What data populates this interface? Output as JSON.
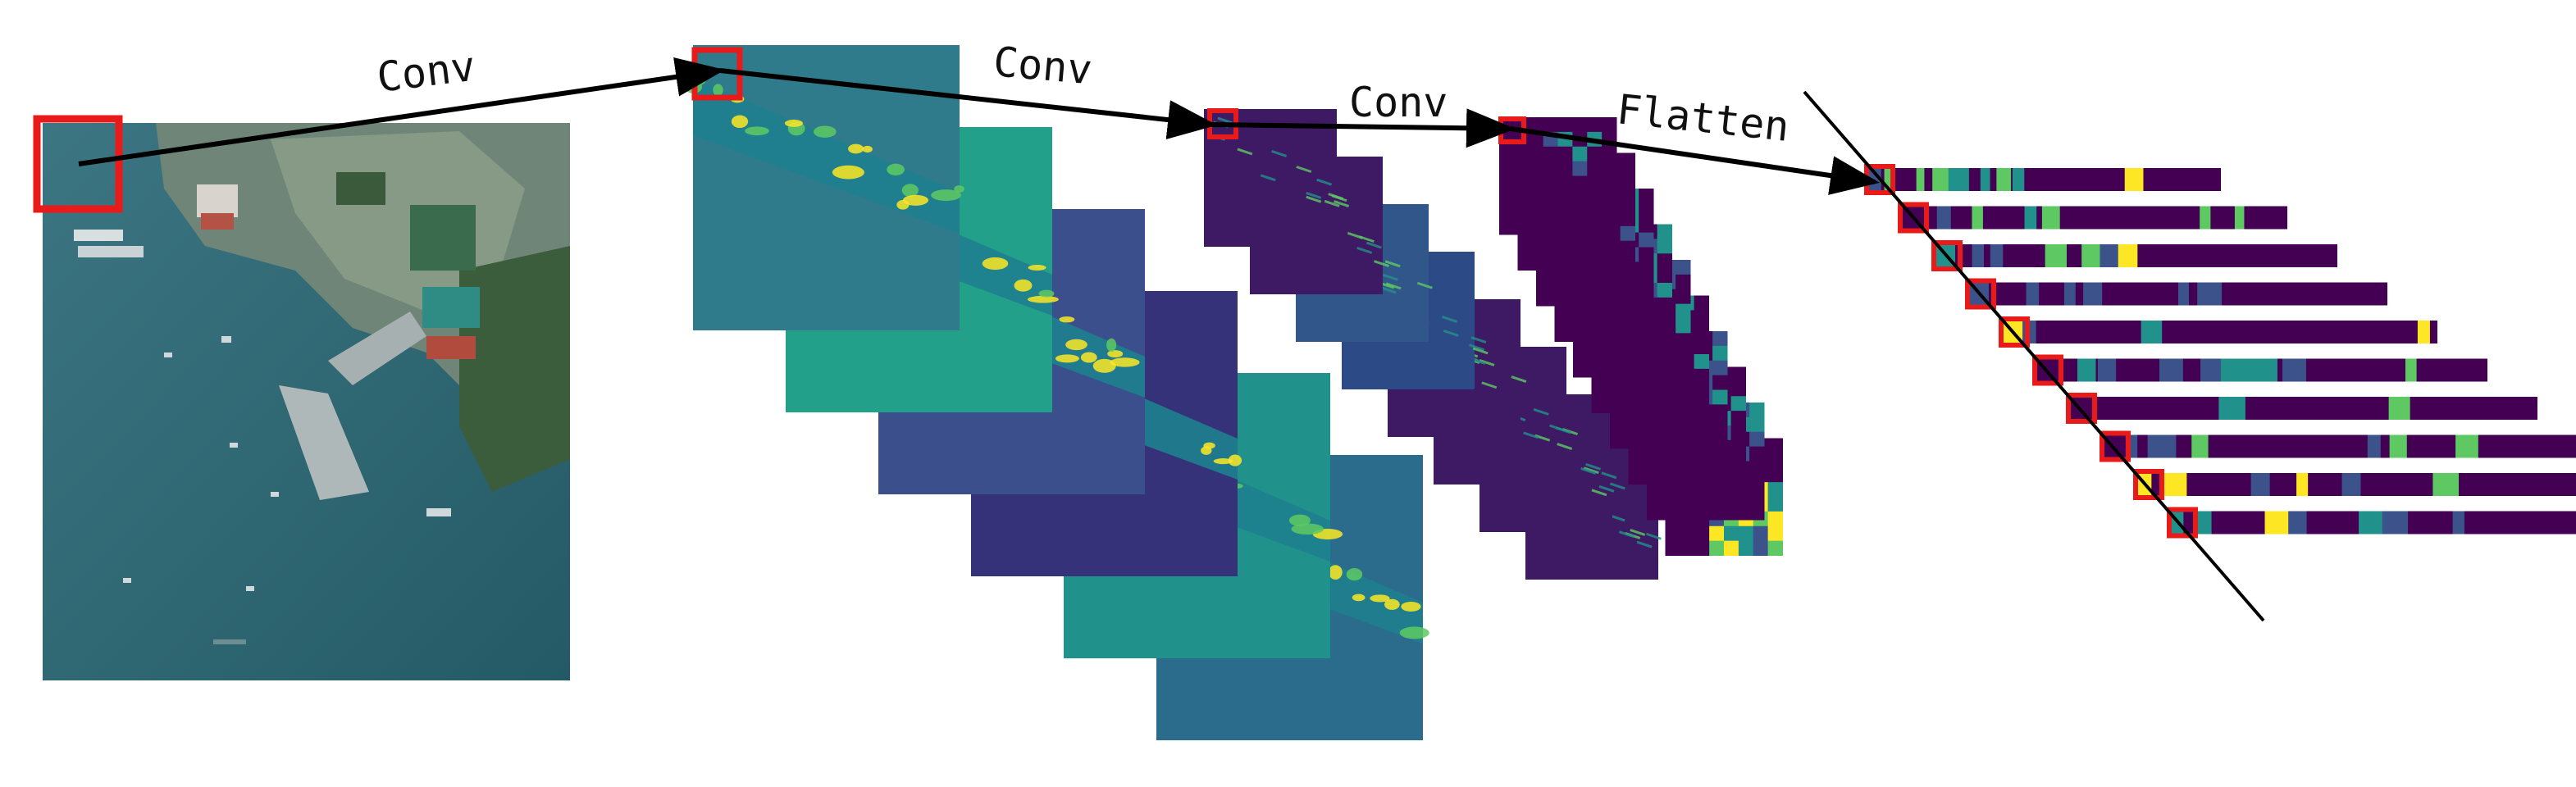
{
  "labels": {
    "conv1": "Conv",
    "conv2": "Conv",
    "conv3": "Conv",
    "flatten": "Flatten"
  },
  "stages": [
    {
      "name": "input-image",
      "maps": 1
    },
    {
      "name": "conv-layer-1",
      "maps": 6
    },
    {
      "name": "conv-layer-2",
      "maps": 8
    },
    {
      "name": "conv-layer-3",
      "maps": 10
    },
    {
      "name": "flatten-vectors",
      "maps": 10
    }
  ],
  "colors": {
    "box": "#e81a1a",
    "arrow": "#000000",
    "satellite_water": "#2d6872",
    "viridis": [
      "#440154",
      "#3b528b",
      "#21918c",
      "#5ec962",
      "#fde725"
    ]
  }
}
